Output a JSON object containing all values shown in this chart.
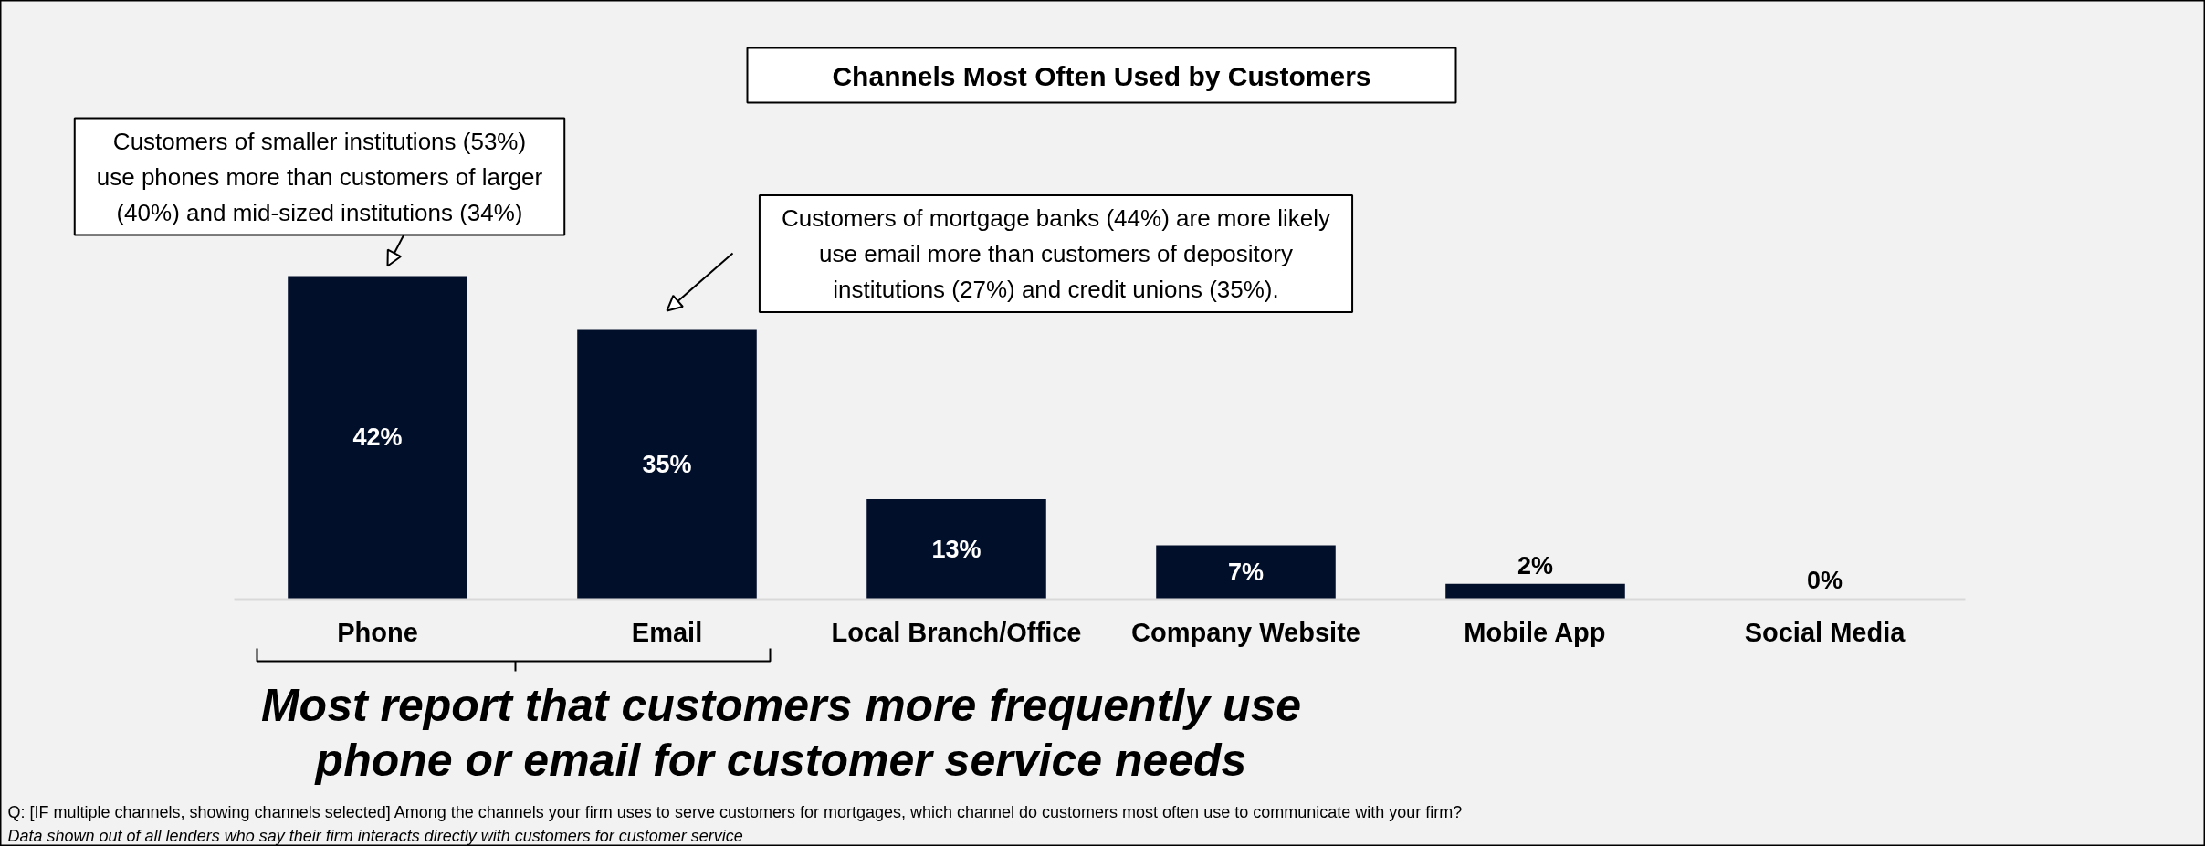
{
  "chart_data": {
    "type": "bar",
    "title": "Channels Most Often Used by Customers",
    "categories": [
      "Phone",
      "Email",
      "Local Branch/Office",
      "Company Website",
      "Mobile App",
      "Social Media"
    ],
    "values": [
      42,
      35,
      13,
      7,
      2,
      0
    ],
    "color": "#020f2b",
    "value_labels": [
      "42%",
      "35%",
      "13%",
      "7%",
      "2%",
      "0%"
    ],
    "grid": false,
    "annotations": [
      "Customers of smaller institutions (53%) use phones more than customers of larger (40%) and mid-sized institutions (34%)",
      "Customers of mortgage banks (44%) are more likely use email more than customers of depository institutions (27%) and credit unions (35%).",
      "Most report that customers more frequently use phone or email for customer service needs",
      "Q: [IF multiple channels, showing channels selected] Among the channels your firm uses to serve customers for mortgages, which channel do customers most often use to communicate with your firm?",
      "Data shown out of all lenders who say their firm interacts directly with customers for customer service"
    ]
  }
}
